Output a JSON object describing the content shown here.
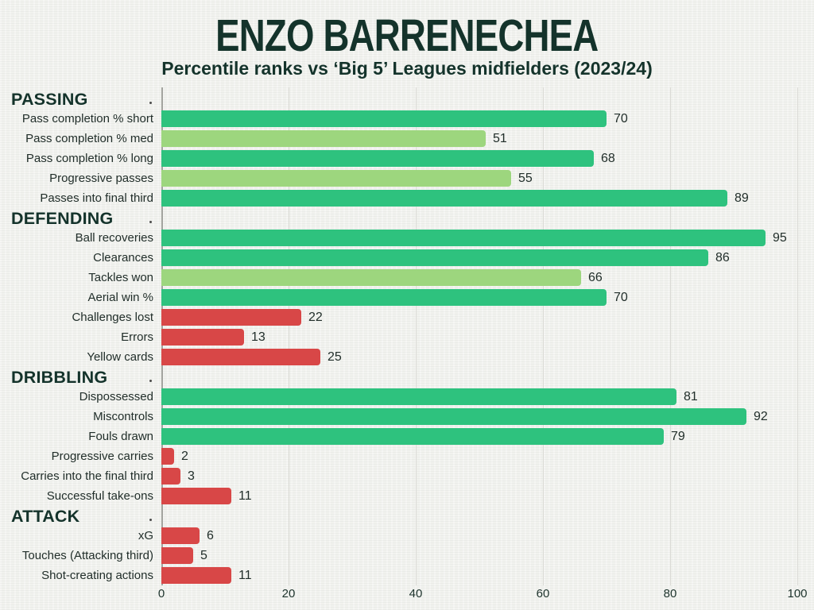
{
  "page": {
    "title": "ENZO BARRENECHEA",
    "subtitle": "Percentile ranks vs ‘Big 5’ Leagues midfielders (2023/24)"
  },
  "chart_data": {
    "type": "bar",
    "orientation": "horizontal",
    "title": "ENZO BARRENECHEA",
    "subtitle": "Percentile ranks vs ‘Big 5’ Leagues midfielders (2023/24)",
    "xlabel": "",
    "ylabel": "",
    "xlim": [
      0,
      100
    ],
    "x_ticks": [
      0,
      20,
      40,
      60,
      80,
      100
    ],
    "grid": "vertical-light",
    "legend": "none",
    "colors": {
      "high": "#2ec27e",
      "mid": "#9dd67e",
      "low": "#d84747"
    },
    "sections": [
      {
        "name": "PASSING",
        "items": [
          {
            "label": "Pass completion % short",
            "value": 70,
            "tier": "high"
          },
          {
            "label": "Pass completion % med",
            "value": 51,
            "tier": "mid"
          },
          {
            "label": "Pass completion % long",
            "value": 68,
            "tier": "high"
          },
          {
            "label": "Progressive passes",
            "value": 55,
            "tier": "mid"
          },
          {
            "label": "Passes into final third",
            "value": 89,
            "tier": "high"
          }
        ]
      },
      {
        "name": "DEFENDING",
        "items": [
          {
            "label": "Ball recoveries",
            "value": 95,
            "tier": "high"
          },
          {
            "label": "Clearances",
            "value": 86,
            "tier": "high"
          },
          {
            "label": "Tackles won",
            "value": 66,
            "tier": "mid"
          },
          {
            "label": "Aerial win %",
            "value": 70,
            "tier": "high"
          },
          {
            "label": "Challenges lost",
            "value": 22,
            "tier": "low"
          },
          {
            "label": "Errors",
            "value": 13,
            "tier": "low"
          },
          {
            "label": "Yellow cards",
            "value": 25,
            "tier": "low"
          }
        ]
      },
      {
        "name": "DRIBBLING",
        "items": [
          {
            "label": "Dispossessed",
            "value": 81,
            "tier": "high"
          },
          {
            "label": "Miscontrols",
            "value": 92,
            "tier": "high"
          },
          {
            "label": "Fouls drawn",
            "value": 79,
            "tier": "high"
          },
          {
            "label": "Progressive carries",
            "value": 2,
            "tier": "low"
          },
          {
            "label": "Carries into the final third",
            "value": 3,
            "tier": "low"
          },
          {
            "label": "Successful take-ons",
            "value": 11,
            "tier": "low"
          }
        ]
      },
      {
        "name": "ATTACK",
        "items": [
          {
            "label": "xG",
            "value": 6,
            "tier": "low"
          },
          {
            "label": "Touches (Attacking third)",
            "value": 5,
            "tier": "low"
          },
          {
            "label": "Shot-creating actions",
            "value": 11,
            "tier": "low"
          }
        ]
      }
    ]
  }
}
